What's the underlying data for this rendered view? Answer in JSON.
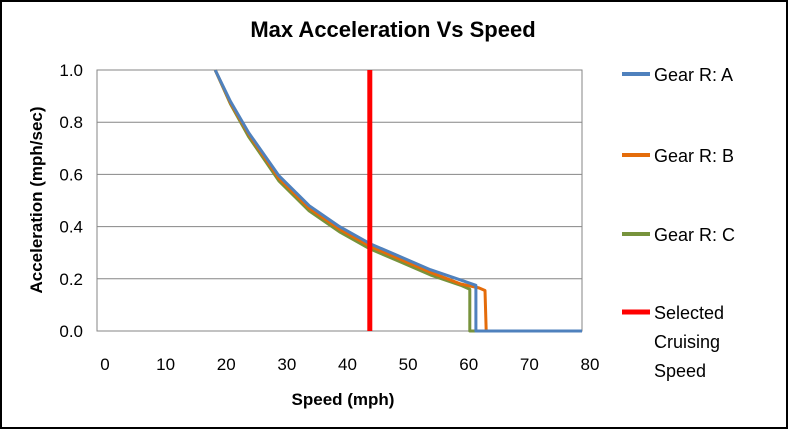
{
  "chart_data": {
    "type": "line",
    "title": "Max Acceleration Vs Speed",
    "xlabel": "Speed (mph)",
    "ylabel": "Acceleration  (mph/sec)",
    "xlim": [
      0,
      80
    ],
    "ylim": [
      0,
      1.0
    ],
    "x_ticks": [
      "0",
      "10",
      "20",
      "30",
      "40",
      "50",
      "60",
      "70",
      "80"
    ],
    "y_ticks": [
      "0.0",
      "0.2",
      "0.4",
      "0.6",
      "0.8",
      "1.0"
    ],
    "grid": "horizontal",
    "legend_position": "right",
    "series": [
      {
        "name": "Gear R: A",
        "color": "#4f81bd",
        "points": [
          [
            19.5,
            1.0
          ],
          [
            22,
            0.88
          ],
          [
            25,
            0.76
          ],
          [
            30,
            0.595
          ],
          [
            35,
            0.48
          ],
          [
            40,
            0.4
          ],
          [
            45,
            0.335
          ],
          [
            50,
            0.285
          ],
          [
            55,
            0.235
          ],
          [
            60,
            0.195
          ],
          [
            62.5,
            0.175
          ],
          [
            62.5,
            0.0
          ],
          [
            80,
            0.0
          ]
        ]
      },
      {
        "name": "Gear R: B",
        "color": "#e46c0a",
        "points": [
          [
            19.5,
            1.0
          ],
          [
            22,
            0.875
          ],
          [
            25,
            0.755
          ],
          [
            30,
            0.585
          ],
          [
            35,
            0.47
          ],
          [
            40,
            0.39
          ],
          [
            45,
            0.325
          ],
          [
            50,
            0.275
          ],
          [
            55,
            0.225
          ],
          [
            60,
            0.18
          ],
          [
            63,
            0.165
          ],
          [
            64,
            0.155
          ],
          [
            64.2,
            0.0
          ],
          [
            80,
            0.0
          ]
        ]
      },
      {
        "name": "Gear R: C",
        "color": "#77933c",
        "points": [
          [
            19.5,
            1.0
          ],
          [
            22,
            0.87
          ],
          [
            25,
            0.745
          ],
          [
            30,
            0.575
          ],
          [
            35,
            0.46
          ],
          [
            40,
            0.38
          ],
          [
            45,
            0.315
          ],
          [
            50,
            0.265
          ],
          [
            55,
            0.215
          ],
          [
            60,
            0.175
          ],
          [
            61.5,
            0.16
          ],
          [
            61.5,
            0.0
          ],
          [
            80,
            0.0
          ]
        ]
      },
      {
        "name": "Selected Cruising Speed",
        "color": "#ff0000",
        "points": [
          [
            45,
            0.0
          ],
          [
            45,
            1.0
          ]
        ]
      }
    ]
  },
  "legend": {
    "items": [
      {
        "lines": [
          "Gear R: A"
        ],
        "color": "#4f81bd"
      },
      {
        "lines": [
          "Gear R: B"
        ],
        "color": "#e46c0a"
      },
      {
        "lines": [
          "Gear R: C"
        ],
        "color": "#77933c"
      },
      {
        "lines": [
          "Selected",
          "Cruising",
          "Speed"
        ],
        "color": "#ff0000"
      }
    ]
  }
}
